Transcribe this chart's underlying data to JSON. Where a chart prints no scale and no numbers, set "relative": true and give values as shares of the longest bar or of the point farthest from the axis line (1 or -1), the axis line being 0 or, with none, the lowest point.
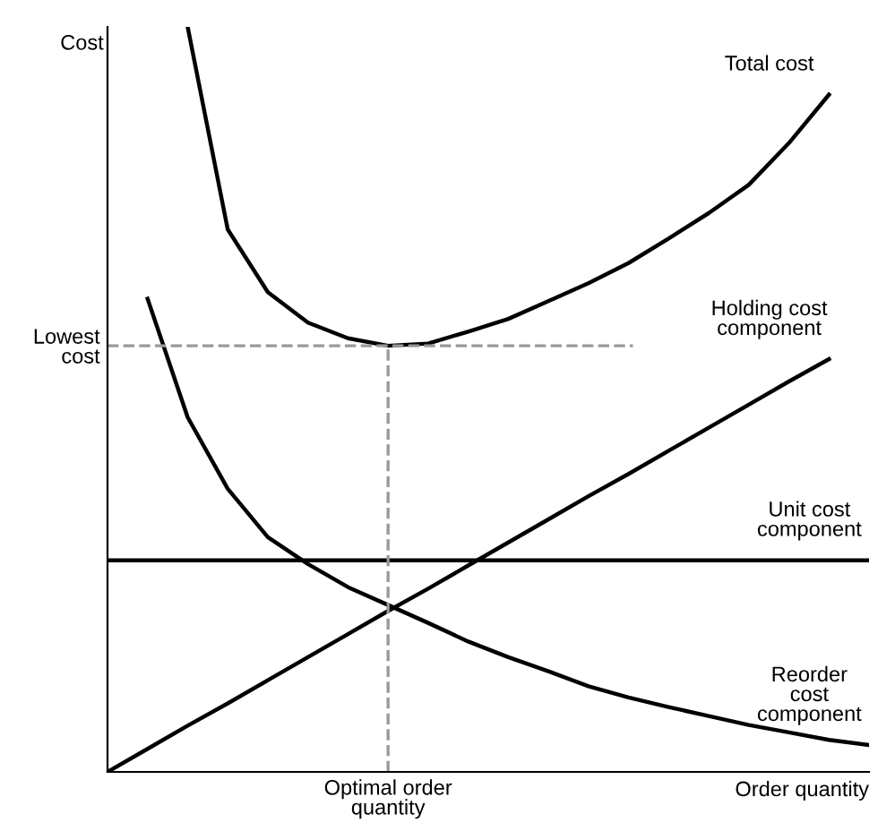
{
  "chart_data": {
    "type": "line",
    "relative": true,
    "xlabel": "Order quantity",
    "ylabel": "Cost",
    "line_style": "solid",
    "legend": false,
    "grid": false,
    "categories": [
      null,
      null,
      null,
      null,
      null,
      null,
      null,
      null,
      null,
      null,
      null,
      null,
      null,
      null,
      null,
      null,
      null,
      null,
      null,
      null
    ],
    "series": [
      {
        "name": "Total cost",
        "color": "#000000",
        "values": [
          null,
          null,
          1.0,
          0.728,
          0.644,
          0.603,
          0.582,
          0.572,
          0.575,
          0.591,
          0.608,
          0.632,
          0.656,
          0.683,
          0.716,
          0.75,
          0.788,
          0.844,
          0.909,
          null
        ]
      },
      {
        "name": "Holding cost\ncomponent",
        "color": "#000000",
        "values": [
          0.0,
          0.031,
          0.062,
          0.092,
          0.123,
          0.154,
          0.185,
          0.216,
          0.246,
          0.277,
          0.308,
          0.339,
          0.37,
          0.4,
          0.431,
          0.462,
          0.493,
          0.524,
          0.554,
          null
        ]
      },
      {
        "name": "Unit cost\ncomponent",
        "color": "#000000",
        "values": [
          0.284,
          0.284,
          0.284,
          0.284,
          0.284,
          0.284,
          0.284,
          0.284,
          0.284,
          0.284,
          0.284,
          0.284,
          0.284,
          0.284,
          0.284,
          0.284,
          0.284,
          0.284,
          0.284,
          0.284
        ]
      },
      {
        "name": "Reorder\ncost\ncomponent",
        "color": "#000000",
        "values": [
          null,
          0.635,
          0.476,
          0.38,
          0.315,
          0.279,
          0.248,
          0.224,
          0.2,
          0.175,
          0.154,
          0.135,
          0.115,
          0.1,
          0.087,
          0.075,
          0.063,
          0.053,
          0.043,
          0.036
        ]
      }
    ],
    "ref_lines": [
      {
        "axis": "y",
        "value": 0.572,
        "label": "Lowest\ncost",
        "color": "#999999",
        "line_style": "dashed"
      }
    ],
    "annotations": [
      "Optimal order\nquantity"
    ]
  }
}
